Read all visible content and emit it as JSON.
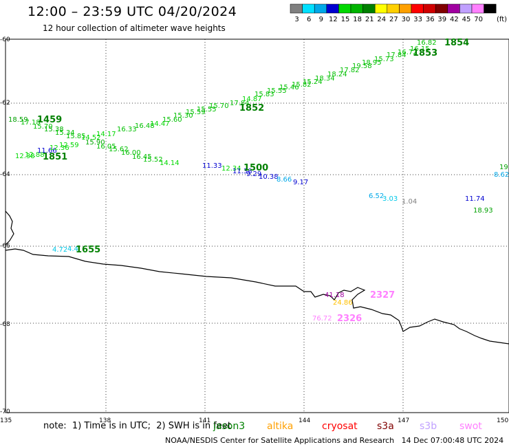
{
  "header": {
    "title": "12:00 – 23:59 UTC 04/20/2024",
    "subtitle": "12 hour collection of altimeter wave heights"
  },
  "legend": {
    "unit": "(ft)",
    "bins": [
      {
        "label": "3",
        "color": "#808080"
      },
      {
        "label": "6",
        "color": "#00e0ff"
      },
      {
        "label": "9",
        "color": "#00a8e8"
      },
      {
        "label": "12",
        "color": "#0000d0"
      },
      {
        "label": "15",
        "color": "#00d800"
      },
      {
        "label": "18",
        "color": "#00b400"
      },
      {
        "label": "21",
        "color": "#008000"
      },
      {
        "label": "24",
        "color": "#ffff00"
      },
      {
        "label": "27",
        "color": "#ffd000"
      },
      {
        "label": "30",
        "color": "#ffa000"
      },
      {
        "label": "33",
        "color": "#ff0000"
      },
      {
        "label": "36",
        "color": "#d00000"
      },
      {
        "label": "39",
        "color": "#800000"
      },
      {
        "label": "42",
        "color": "#a000a0"
      },
      {
        "label": "45",
        "color": "#c0a0ff"
      },
      {
        "label": "70",
        "color": "#ff80ff"
      },
      {
        "label": "",
        "color": "#000000"
      }
    ]
  },
  "axes": {
    "lat_labels": [
      "-60",
      "-62",
      "-64",
      "-66",
      "-68",
      "-70"
    ],
    "lon_labels": [
      "135",
      "138",
      "141",
      "144",
      "147",
      "150"
    ]
  },
  "tracks": [
    {
      "name": "1459",
      "color": "#008000"
    },
    {
      "name": "1851",
      "color": "#008000"
    },
    {
      "name": "1852",
      "color": "#008000"
    },
    {
      "name": "1853",
      "color": "#008000"
    },
    {
      "name": "1854",
      "color": "#008000"
    },
    {
      "name": "1500",
      "color": "#008000"
    },
    {
      "name": "1655",
      "color": "#008000"
    },
    {
      "name": "2326",
      "color": "#ff80ff"
    },
    {
      "name": "2327",
      "color": "#ff80ff"
    }
  ],
  "values": [
    {
      "t": "18.59",
      "c": "#00a000"
    },
    {
      "t": "17.18",
      "c": "#00c000"
    },
    {
      "t": "15.70",
      "c": "#00c000"
    },
    {
      "t": "15.38",
      "c": "#00b400"
    },
    {
      "t": "15.34",
      "c": "#00c000"
    },
    {
      "t": "15.85",
      "c": "#00c000"
    },
    {
      "t": "15.90",
      "c": "#00a800"
    },
    {
      "t": "16.05",
      "c": "#00c000"
    },
    {
      "t": "15.62",
      "c": "#00c000"
    },
    {
      "t": "16.00",
      "c": "#00c000"
    },
    {
      "t": "16.45",
      "c": "#00c000"
    },
    {
      "t": "15.52",
      "c": "#00c000"
    },
    {
      "t": "14.14",
      "c": "#00d800"
    },
    {
      "t": "11.33",
      "c": "#0000d0"
    },
    {
      "t": "12.34",
      "c": "#00d800"
    },
    {
      "t": "11.38",
      "c": "#0000d0"
    },
    {
      "t": "9.29",
      "c": "#0000d0"
    },
    {
      "t": "10.38",
      "c": "#0000d0"
    },
    {
      "t": "8.66",
      "c": "#00a8e8"
    },
    {
      "t": "9.17",
      "c": "#0000d0"
    },
    {
      "t": "12.38",
      "c": "#00d800"
    },
    {
      "t": "12.88",
      "c": "#00d800"
    },
    {
      "t": "11.66",
      "c": "#0000d0"
    },
    {
      "t": "12.36",
      "c": "#00d800"
    },
    {
      "t": "12.59",
      "c": "#00d800"
    },
    {
      "t": "14.52",
      "c": "#00d800"
    },
    {
      "t": "14.17",
      "c": "#00d800"
    },
    {
      "t": "16.33",
      "c": "#00c000"
    },
    {
      "t": "16.48",
      "c": "#00c000"
    },
    {
      "t": "14.47",
      "c": "#00d800"
    },
    {
      "t": "15.60",
      "c": "#00c000"
    },
    {
      "t": "15.30",
      "c": "#00c000"
    },
    {
      "t": "15.59",
      "c": "#00c000"
    },
    {
      "t": "15.55",
      "c": "#00c000"
    },
    {
      "t": "15.70",
      "c": "#00c000"
    },
    {
      "t": "17.84",
      "c": "#00c000"
    },
    {
      "t": "14.87",
      "c": "#00d800"
    },
    {
      "t": "15.83",
      "c": "#00c000"
    },
    {
      "t": "15.55",
      "c": "#00c000"
    },
    {
      "t": "15.46",
      "c": "#00c000"
    },
    {
      "t": "15.82",
      "c": "#00c000"
    },
    {
      "t": "15.24",
      "c": "#00c000"
    },
    {
      "t": "18.34",
      "c": "#00c000"
    },
    {
      "t": "18.24",
      "c": "#00c000"
    },
    {
      "t": "17.82",
      "c": "#00c000"
    },
    {
      "t": "19.58",
      "c": "#00c000"
    },
    {
      "t": "18.95",
      "c": "#00c000"
    },
    {
      "t": "15.73",
      "c": "#00c000"
    },
    {
      "t": "17.84",
      "c": "#00c000"
    },
    {
      "t": "16.72",
      "c": "#00c000"
    },
    {
      "t": "16.15",
      "c": "#00c000"
    },
    {
      "t": "16.82",
      "c": "#00c000"
    },
    {
      "t": "4.72",
      "c": "#00c8e8"
    },
    {
      "t": "4.4",
      "c": "#00c8e8"
    },
    {
      "t": "6.52",
      "c": "#00a8e8"
    },
    {
      "t": "3.03",
      "c": "#00c8e8"
    },
    {
      "t": "1.04",
      "c": "#808080"
    },
    {
      "t": "19",
      "c": "#00a000"
    },
    {
      "t": "8.62",
      "c": "#00a8e8"
    },
    {
      "t": "18.93",
      "c": "#00a000"
    },
    {
      "t": "11.74",
      "c": "#0000d0"
    },
    {
      "t": "41.18",
      "c": "#a000a0"
    },
    {
      "t": "24.86",
      "c": "#ffc000"
    },
    {
      "t": "76.72",
      "c": "#ff80ff"
    }
  ],
  "note": "note:  1) Time is in UTC;  2) SWH is in feet",
  "satellites": [
    {
      "name": "jason3",
      "color": "#008000"
    },
    {
      "name": "altika",
      "color": "#ffa000"
    },
    {
      "name": "cryosat",
      "color": "#ff0000"
    },
    {
      "name": "s3a",
      "color": "#800000"
    },
    {
      "name": "s3b",
      "color": "#c0a0ff"
    },
    {
      "name": "swot",
      "color": "#ff80ff"
    }
  ],
  "footer": "NOAA/NESDIS Center for Satellite Applications and Research   14 Dec 07:00:48 UTC 2024"
}
